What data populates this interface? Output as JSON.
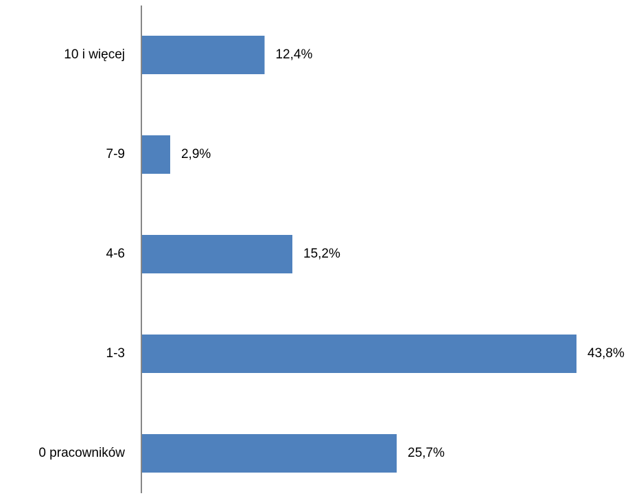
{
  "chart_data": {
    "type": "bar",
    "orientation": "horizontal",
    "title": "",
    "xlabel": "",
    "ylabel": "",
    "categories": [
      "10 i więcej",
      "7-9",
      "4-6",
      "1-3",
      "0 pracowników"
    ],
    "values": [
      12.4,
      2.9,
      15.2,
      43.8,
      25.7
    ],
    "value_labels": [
      "12,4%",
      "2,9%",
      "15,2%",
      "43,8%",
      "25,7%"
    ],
    "xlim": [
      0,
      43.8
    ],
    "grid": false,
    "legend": "none",
    "colors": {
      "bar": "#4f81bd",
      "axis": "#868686",
      "text": "#000000"
    }
  }
}
